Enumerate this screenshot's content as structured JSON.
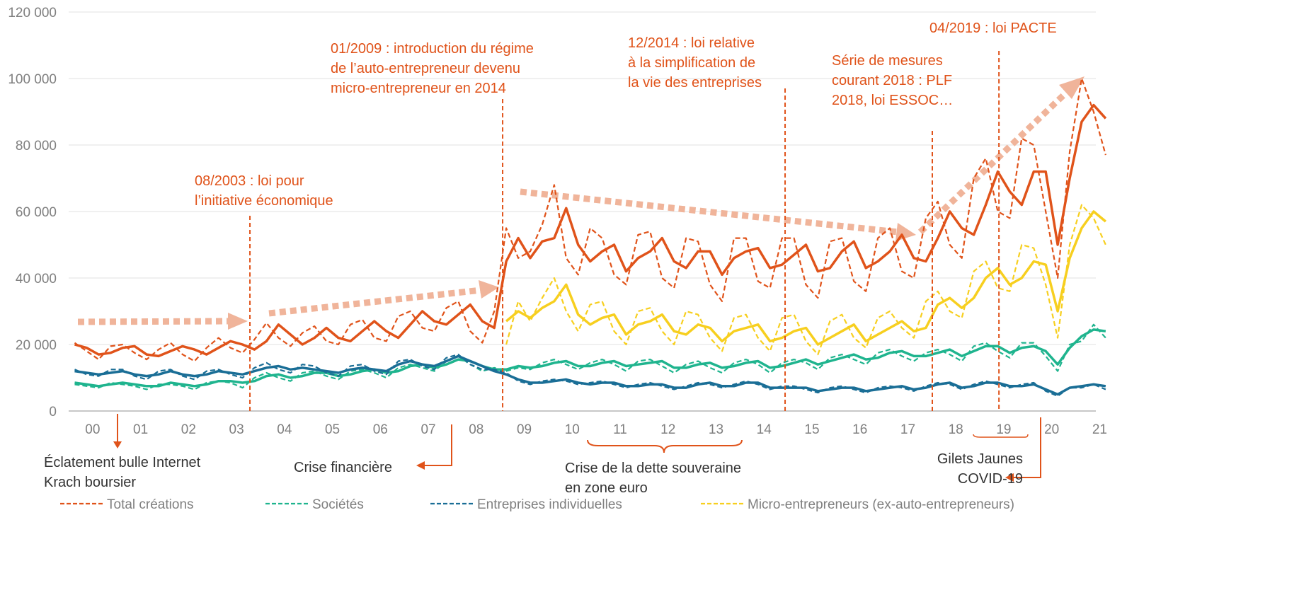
{
  "chart_data": {
    "type": "line",
    "x": [
      2000.125,
      2000.375,
      2000.625,
      2000.875,
      2001.125,
      2001.375,
      2001.625,
      2001.875,
      2002.125,
      2002.375,
      2002.625,
      2002.875,
      2003.125,
      2003.375,
      2003.625,
      2003.875,
      2004.125,
      2004.375,
      2004.625,
      2004.875,
      2005.125,
      2005.375,
      2005.625,
      2005.875,
      2006.125,
      2006.375,
      2006.625,
      2006.875,
      2007.125,
      2007.375,
      2007.625,
      2007.875,
      2008.125,
      2008.375,
      2008.625,
      2008.875,
      2009.125,
      2009.375,
      2009.625,
      2009.875,
      2010.125,
      2010.375,
      2010.625,
      2010.875,
      2011.125,
      2011.375,
      2011.625,
      2011.875,
      2012.125,
      2012.375,
      2012.625,
      2012.875,
      2013.125,
      2013.375,
      2013.625,
      2013.875,
      2014.125,
      2014.375,
      2014.625,
      2014.875,
      2015.125,
      2015.375,
      2015.625,
      2015.875,
      2016.125,
      2016.375,
      2016.625,
      2016.875,
      2017.125,
      2017.375,
      2017.625,
      2017.875,
      2018.125,
      2018.375,
      2018.625,
      2018.875,
      2019.125,
      2019.375,
      2019.625,
      2019.875,
      2020.125,
      2020.375,
      2020.625,
      2020.875,
      2021.125,
      2021.375,
      2021.625
    ],
    "series": [
      {
        "name": "Total créations",
        "color": "#e0531a",
        "values": [
          20500,
          18000,
          15500,
          19500,
          20000,
          17500,
          15500,
          18500,
          20500,
          17000,
          15000,
          19000,
          22000,
          19000,
          17500,
          21500,
          26500,
          22000,
          19500,
          23500,
          25500,
          21000,
          20000,
          26000,
          27500,
          22000,
          21000,
          28500,
          30000,
          25000,
          24000,
          31000,
          33000,
          24000,
          20500,
          30000,
          55000,
          46000,
          48000,
          56000,
          68000,
          46000,
          41000,
          55000,
          52000,
          41000,
          38000,
          53000,
          54000,
          40000,
          37000,
          52000,
          51000,
          38000,
          33000,
          52000,
          52000,
          39000,
          37000,
          52000,
          52000,
          38000,
          34000,
          51000,
          52000,
          39000,
          36000,
          52000,
          55000,
          42000,
          40000,
          58000,
          63000,
          50000,
          46000,
          70000,
          76000,
          60000,
          58000,
          82000,
          80000,
          60000,
          40000,
          78000,
          100000,
          90000,
          77000
        ],
        "trend": [
          20000,
          19000,
          17000,
          17500,
          19000,
          19500,
          17000,
          16500,
          18000,
          19500,
          18500,
          17000,
          19000,
          21000,
          20000,
          18500,
          21000,
          26000,
          23000,
          20000,
          22000,
          25000,
          22000,
          21000,
          24000,
          27000,
          24000,
          22000,
          26000,
          30000,
          27000,
          26000,
          29000,
          32000,
          27000,
          25000,
          45000,
          52000,
          46000,
          51000,
          52000,
          61000,
          50000,
          45000,
          48000,
          50000,
          42000,
          46000,
          48000,
          52000,
          45000,
          43000,
          48000,
          48000,
          41000,
          46000,
          48000,
          49000,
          43000,
          44000,
          47000,
          50000,
          42000,
          43000,
          48000,
          51000,
          43000,
          45000,
          48000,
          53000,
          46000,
          45000,
          52000,
          60000,
          55000,
          53000,
          62000,
          72000,
          66000,
          62000,
          72000,
          72000,
          50000,
          70000,
          87000,
          92000,
          88000
        ]
      },
      {
        "name": "Sociétés",
        "color": "#1fb48e",
        "values": [
          8000,
          7500,
          7000,
          8500,
          8000,
          7500,
          6500,
          8000,
          8000,
          7500,
          6500,
          8500,
          9000,
          8500,
          7000,
          10000,
          11500,
          10000,
          9000,
          11500,
          12000,
          10500,
          9500,
          12000,
          12500,
          11500,
          10000,
          13000,
          14000,
          13000,
          12000,
          15000,
          16500,
          14000,
          12000,
          13000,
          12000,
          13000,
          12500,
          14500,
          15500,
          14000,
          12500,
          14500,
          15500,
          14000,
          12000,
          15000,
          15500,
          13500,
          11500,
          14000,
          15000,
          13000,
          11500,
          14500,
          15500,
          14000,
          11500,
          14500,
          15500,
          14500,
          12500,
          16000,
          17000,
          15500,
          14000,
          17500,
          18500,
          16500,
          15000,
          17500,
          18500,
          17000,
          15000,
          19500,
          20500,
          18000,
          16000,
          20500,
          20500,
          16500,
          12000,
          20000,
          21000,
          26000,
          22000
        ],
        "trend": [
          8500,
          8000,
          7500,
          8000,
          8500,
          8000,
          7500,
          7500,
          8500,
          8000,
          7500,
          8000,
          9000,
          9000,
          8500,
          9000,
          10500,
          11000,
          10000,
          10500,
          11500,
          11500,
          10500,
          11000,
          12000,
          12500,
          11500,
          12000,
          13500,
          14000,
          13000,
          14000,
          15500,
          15000,
          13500,
          12500,
          12500,
          13500,
          13000,
          13500,
          14500,
          15000,
          13500,
          13500,
          14500,
          15000,
          13500,
          14000,
          14500,
          15000,
          13000,
          13000,
          14000,
          14500,
          13000,
          13500,
          14500,
          15000,
          13000,
          13500,
          14500,
          15500,
          14000,
          15000,
          16000,
          17000,
          15500,
          16000,
          17500,
          18000,
          16500,
          16500,
          17500,
          18500,
          16500,
          18000,
          19500,
          19500,
          17500,
          19000,
          19500,
          18000,
          14000,
          19000,
          22500,
          24500,
          24000
        ]
      },
      {
        "name": "Entreprises individuelles",
        "color": "#1a6e96",
        "values": [
          12500,
          11000,
          10500,
          12500,
          12500,
          10500,
          9500,
          12000,
          12500,
          10500,
          9500,
          12000,
          12500,
          11000,
          10000,
          13000,
          14500,
          12500,
          11500,
          14000,
          13500,
          11500,
          10500,
          13500,
          14000,
          12000,
          11000,
          15000,
          15500,
          13500,
          12500,
          16000,
          17000,
          14000,
          12500,
          12500,
          11500,
          9000,
          8000,
          9000,
          9500,
          9000,
          8000,
          8500,
          9000,
          8000,
          7000,
          8000,
          8500,
          7500,
          6500,
          7500,
          8500,
          8000,
          7000,
          8000,
          9000,
          8000,
          6500,
          7500,
          7500,
          6500,
          5500,
          7000,
          7500,
          6500,
          5500,
          7000,
          7500,
          7000,
          6000,
          7500,
          8500,
          8000,
          6500,
          8000,
          9000,
          8000,
          7000,
          8000,
          8500,
          6000,
          4500,
          7000,
          7000,
          8000,
          6500
        ],
        "trend": [
          12000,
          11500,
          11000,
          11500,
          12000,
          11000,
          10500,
          11000,
          12000,
          11000,
          10500,
          11000,
          12000,
          11500,
          11000,
          12000,
          13000,
          13500,
          12500,
          13000,
          12500,
          12000,
          11500,
          12500,
          13000,
          12500,
          12000,
          14000,
          15000,
          14000,
          13500,
          15000,
          16500,
          15000,
          13500,
          12000,
          11000,
          9500,
          8500,
          8500,
          9000,
          9500,
          8500,
          8000,
          8500,
          8500,
          7500,
          7500,
          8000,
          8000,
          7000,
          7000,
          8000,
          8500,
          7500,
          7500,
          8500,
          8500,
          7000,
          7000,
          7000,
          7000,
          6000,
          6500,
          7000,
          7000,
          6000,
          6500,
          7000,
          7500,
          6500,
          7000,
          8000,
          8500,
          7000,
          7500,
          8500,
          8500,
          7500,
          7500,
          8000,
          6500,
          5000,
          7000,
          7500,
          8000,
          7500
        ]
      },
      {
        "name": "Micro-entrepreneurs (ex-auto-entrepreneurs)",
        "color": "#f7cf1f",
        "values": [
          null,
          null,
          null,
          null,
          null,
          null,
          null,
          null,
          null,
          null,
          null,
          null,
          null,
          null,
          null,
          null,
          null,
          null,
          null,
          null,
          null,
          null,
          null,
          null,
          null,
          null,
          null,
          null,
          null,
          null,
          null,
          null,
          null,
          null,
          null,
          null,
          20000,
          33000,
          27000,
          34000,
          40000,
          30000,
          24000,
          32000,
          33000,
          24000,
          20000,
          30000,
          31000,
          24000,
          20000,
          30000,
          29000,
          22000,
          18000,
          28000,
          29000,
          22000,
          18000,
          28000,
          29000,
          21000,
          17000,
          27000,
          29000,
          22000,
          19000,
          28000,
          30000,
          25000,
          22000,
          33000,
          36000,
          30000,
          28000,
          42000,
          45000,
          37000,
          36000,
          50000,
          49000,
          38000,
          22000,
          50000,
          62000,
          58000,
          50000
        ],
        "trend": [
          null,
          null,
          null,
          null,
          null,
          null,
          null,
          null,
          null,
          null,
          null,
          null,
          null,
          null,
          null,
          null,
          null,
          null,
          null,
          null,
          null,
          null,
          null,
          null,
          null,
          null,
          null,
          null,
          null,
          null,
          null,
          null,
          null,
          null,
          null,
          null,
          27000,
          30000,
          28000,
          31000,
          33000,
          38000,
          29000,
          26000,
          28000,
          29000,
          23000,
          26000,
          27000,
          29000,
          24000,
          23000,
          26000,
          25000,
          21000,
          24000,
          25000,
          26000,
          21000,
          22000,
          24000,
          25000,
          20000,
          22000,
          24000,
          26000,
          21000,
          23000,
          25000,
          27000,
          24000,
          25000,
          32000,
          34000,
          31000,
          34000,
          40000,
          43000,
          38000,
          40000,
          45000,
          44000,
          30000,
          46000,
          55000,
          60000,
          57000
        ]
      }
    ],
    "xlim": [
      2000,
      2021.7
    ],
    "xticks": [
      {
        "value": 2000.5,
        "label": "00"
      },
      {
        "value": 2001.5,
        "label": "01"
      },
      {
        "value": 2002.5,
        "label": "02"
      },
      {
        "value": 2003.5,
        "label": "03"
      },
      {
        "value": 2004.5,
        "label": "04"
      },
      {
        "value": 2005.5,
        "label": "05"
      },
      {
        "value": 2006.5,
        "label": "06"
      },
      {
        "value": 2007.5,
        "label": "07"
      },
      {
        "value": 2008.5,
        "label": "08"
      },
      {
        "value": 2009.5,
        "label": "09"
      },
      {
        "value": 2010.5,
        "label": "10"
      },
      {
        "value": 2011.5,
        "label": "11"
      },
      {
        "value": 2012.5,
        "label": "12"
      },
      {
        "value": 2013.5,
        "label": "13"
      },
      {
        "value": 2014.5,
        "label": "14"
      },
      {
        "value": 2015.5,
        "label": "15"
      },
      {
        "value": 2016.5,
        "label": "16"
      },
      {
        "value": 2017.5,
        "label": "17"
      },
      {
        "value": 2018.5,
        "label": "18"
      },
      {
        "value": 2019.5,
        "label": "19"
      },
      {
        "value": 2020.5,
        "label": "20"
      },
      {
        "value": 2021.5,
        "label": "21"
      }
    ],
    "ylim": [
      0,
      120000
    ],
    "yticks": [
      0,
      {
        "value": 20000,
        "label": "20 000"
      },
      {
        "value": 40000,
        "label": "40 000"
      },
      {
        "value": 60000,
        "label": "60 000"
      },
      {
        "value": 80000,
        "label": "80 000"
      },
      {
        "value": 100000,
        "label": "100 000"
      },
      {
        "value": 120000,
        "label": "120 000"
      }
    ],
    "grid": true,
    "events": [
      {
        "x": 2003.78,
        "lines": [
          "08/2003 : loi pour",
          "l’initiative économique"
        ]
      },
      {
        "x": 2009.05,
        "lines": [
          "01/2009 : introduction du régime",
          "de l’auto-entrepreneur devenu",
          "micro-entrepreneur en 2014"
        ]
      },
      {
        "x": 2014.94,
        "lines": [
          "12/2014 : loi relative",
          "à la simplification de",
          "la vie des entreprises"
        ]
      },
      {
        "x": 2018.01,
        "lines": [
          "Série de mesures",
          "courant 2018 : PLF",
          "2018, loi ESSOC…"
        ]
      },
      {
        "x": 2019.4,
        "lines": [
          "04/2019 : loi PACTE"
        ]
      }
    ],
    "crises": [
      {
        "lines": [
          "Éclatement bulle Internet",
          "Krach boursier"
        ]
      },
      {
        "lines": [
          "Crise financière"
        ]
      },
      {
        "lines": [
          "Crise de la dette souveraine",
          "en zone euro"
        ]
      },
      {
        "lines": [
          "Gilets Jaunes",
          "COVID-19"
        ]
      }
    ]
  }
}
